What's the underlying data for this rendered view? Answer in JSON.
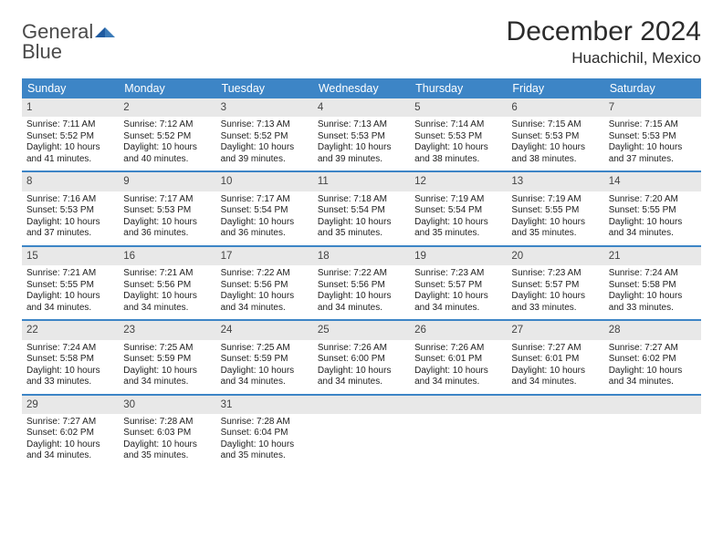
{
  "logo": {
    "line1": "General",
    "line2": "Blue"
  },
  "title": "December 2024",
  "location": "Huachichil, Mexico",
  "colors": {
    "header_bg": "#3d85c6",
    "header_text": "#ffffff",
    "daynum_bg": "#e8e8e8",
    "rule": "#3d85c6",
    "logo_gray": "#4a4a4a",
    "logo_blue": "#3a7ab8"
  },
  "dow": [
    "Sunday",
    "Monday",
    "Tuesday",
    "Wednesday",
    "Thursday",
    "Friday",
    "Saturday"
  ],
  "days": [
    {
      "n": "1",
      "sr": "7:11 AM",
      "ss": "5:52 PM",
      "dl": "10 hours and 41 minutes."
    },
    {
      "n": "2",
      "sr": "7:12 AM",
      "ss": "5:52 PM",
      "dl": "10 hours and 40 minutes."
    },
    {
      "n": "3",
      "sr": "7:13 AM",
      "ss": "5:52 PM",
      "dl": "10 hours and 39 minutes."
    },
    {
      "n": "4",
      "sr": "7:13 AM",
      "ss": "5:53 PM",
      "dl": "10 hours and 39 minutes."
    },
    {
      "n": "5",
      "sr": "7:14 AM",
      "ss": "5:53 PM",
      "dl": "10 hours and 38 minutes."
    },
    {
      "n": "6",
      "sr": "7:15 AM",
      "ss": "5:53 PM",
      "dl": "10 hours and 38 minutes."
    },
    {
      "n": "7",
      "sr": "7:15 AM",
      "ss": "5:53 PM",
      "dl": "10 hours and 37 minutes."
    },
    {
      "n": "8",
      "sr": "7:16 AM",
      "ss": "5:53 PM",
      "dl": "10 hours and 37 minutes."
    },
    {
      "n": "9",
      "sr": "7:17 AM",
      "ss": "5:53 PM",
      "dl": "10 hours and 36 minutes."
    },
    {
      "n": "10",
      "sr": "7:17 AM",
      "ss": "5:54 PM",
      "dl": "10 hours and 36 minutes."
    },
    {
      "n": "11",
      "sr": "7:18 AM",
      "ss": "5:54 PM",
      "dl": "10 hours and 35 minutes."
    },
    {
      "n": "12",
      "sr": "7:19 AM",
      "ss": "5:54 PM",
      "dl": "10 hours and 35 minutes."
    },
    {
      "n": "13",
      "sr": "7:19 AM",
      "ss": "5:55 PM",
      "dl": "10 hours and 35 minutes."
    },
    {
      "n": "14",
      "sr": "7:20 AM",
      "ss": "5:55 PM",
      "dl": "10 hours and 34 minutes."
    },
    {
      "n": "15",
      "sr": "7:21 AM",
      "ss": "5:55 PM",
      "dl": "10 hours and 34 minutes."
    },
    {
      "n": "16",
      "sr": "7:21 AM",
      "ss": "5:56 PM",
      "dl": "10 hours and 34 minutes."
    },
    {
      "n": "17",
      "sr": "7:22 AM",
      "ss": "5:56 PM",
      "dl": "10 hours and 34 minutes."
    },
    {
      "n": "18",
      "sr": "7:22 AM",
      "ss": "5:56 PM",
      "dl": "10 hours and 34 minutes."
    },
    {
      "n": "19",
      "sr": "7:23 AM",
      "ss": "5:57 PM",
      "dl": "10 hours and 34 minutes."
    },
    {
      "n": "20",
      "sr": "7:23 AM",
      "ss": "5:57 PM",
      "dl": "10 hours and 33 minutes."
    },
    {
      "n": "21",
      "sr": "7:24 AM",
      "ss": "5:58 PM",
      "dl": "10 hours and 33 minutes."
    },
    {
      "n": "22",
      "sr": "7:24 AM",
      "ss": "5:58 PM",
      "dl": "10 hours and 33 minutes."
    },
    {
      "n": "23",
      "sr": "7:25 AM",
      "ss": "5:59 PM",
      "dl": "10 hours and 34 minutes."
    },
    {
      "n": "24",
      "sr": "7:25 AM",
      "ss": "5:59 PM",
      "dl": "10 hours and 34 minutes."
    },
    {
      "n": "25",
      "sr": "7:26 AM",
      "ss": "6:00 PM",
      "dl": "10 hours and 34 minutes."
    },
    {
      "n": "26",
      "sr": "7:26 AM",
      "ss": "6:01 PM",
      "dl": "10 hours and 34 minutes."
    },
    {
      "n": "27",
      "sr": "7:27 AM",
      "ss": "6:01 PM",
      "dl": "10 hours and 34 minutes."
    },
    {
      "n": "28",
      "sr": "7:27 AM",
      "ss": "6:02 PM",
      "dl": "10 hours and 34 minutes."
    },
    {
      "n": "29",
      "sr": "7:27 AM",
      "ss": "6:02 PM",
      "dl": "10 hours and 34 minutes."
    },
    {
      "n": "30",
      "sr": "7:28 AM",
      "ss": "6:03 PM",
      "dl": "10 hours and 35 minutes."
    },
    {
      "n": "31",
      "sr": "7:28 AM",
      "ss": "6:04 PM",
      "dl": "10 hours and 35 minutes."
    }
  ],
  "labels": {
    "sunrise": "Sunrise: ",
    "sunset": "Sunset: ",
    "daylight": "Daylight: "
  }
}
